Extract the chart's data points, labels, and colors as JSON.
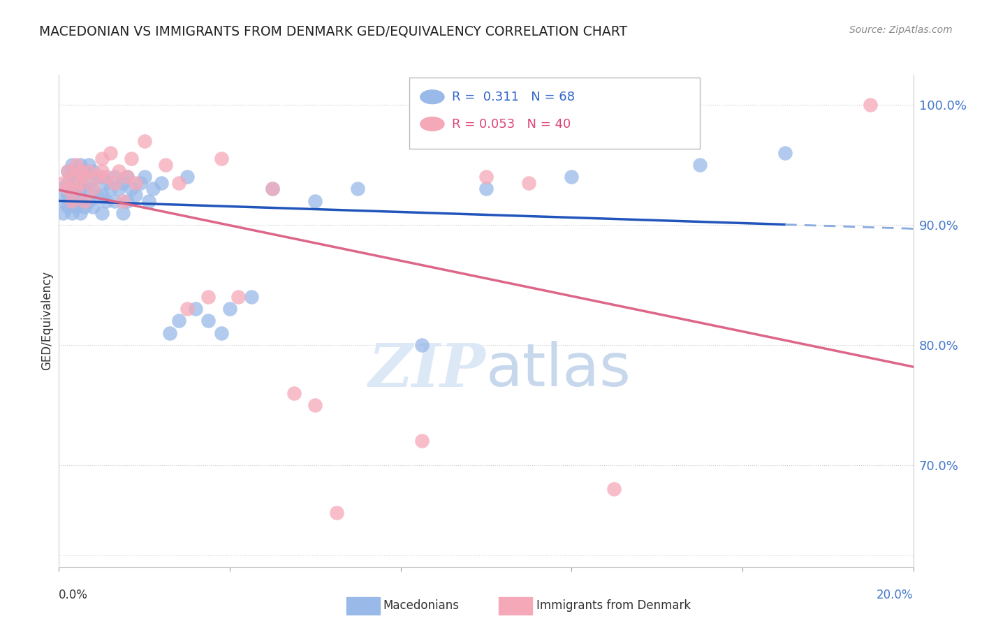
{
  "title": "MACEDONIAN VS IMMIGRANTS FROM DENMARK GED/EQUIVALENCY CORRELATION CHART",
  "source": "Source: ZipAtlas.com",
  "ylabel": "GED/Equivalency",
  "ytick_labels": [
    "70.0%",
    "80.0%",
    "90.0%",
    "100.0%"
  ],
  "ytick_values": [
    0.7,
    0.8,
    0.9,
    1.0
  ],
  "xlim": [
    0.0,
    0.2
  ],
  "ylim": [
    0.615,
    1.025
  ],
  "macedonian_color": "#99b9e8",
  "denmark_color": "#f5a8b8",
  "trendline_blue": "#2255bb",
  "trendline_pink": "#dd6688",
  "trendline_dashed_color": "#88aadd",
  "watermark_zip": "ZIP",
  "watermark_atlas": "atlas",
  "legend_r1_label": "R =  0.311",
  "legend_r1_n": "N = 68",
  "legend_r2_label": "R = 0.053",
  "legend_r2_n": "N = 40",
  "mac_x": [
    0.001,
    0.001,
    0.001,
    0.002,
    0.002,
    0.002,
    0.002,
    0.003,
    0.003,
    0.003,
    0.003,
    0.003,
    0.004,
    0.004,
    0.004,
    0.004,
    0.005,
    0.005,
    0.005,
    0.005,
    0.005,
    0.006,
    0.006,
    0.006,
    0.007,
    0.007,
    0.007,
    0.008,
    0.008,
    0.008,
    0.009,
    0.009,
    0.01,
    0.01,
    0.01,
    0.011,
    0.011,
    0.012,
    0.013,
    0.013,
    0.014,
    0.015,
    0.015,
    0.016,
    0.016,
    0.017,
    0.018,
    0.019,
    0.02,
    0.021,
    0.022,
    0.024,
    0.026,
    0.028,
    0.03,
    0.032,
    0.035,
    0.038,
    0.04,
    0.045,
    0.05,
    0.06,
    0.07,
    0.085,
    0.1,
    0.12,
    0.15,
    0.17
  ],
  "mac_y": [
    0.91,
    0.92,
    0.93,
    0.915,
    0.925,
    0.935,
    0.945,
    0.91,
    0.92,
    0.93,
    0.94,
    0.95,
    0.915,
    0.925,
    0.935,
    0.945,
    0.91,
    0.92,
    0.93,
    0.94,
    0.95,
    0.915,
    0.93,
    0.945,
    0.92,
    0.935,
    0.95,
    0.915,
    0.93,
    0.945,
    0.925,
    0.94,
    0.91,
    0.925,
    0.94,
    0.92,
    0.935,
    0.93,
    0.92,
    0.94,
    0.93,
    0.91,
    0.935,
    0.92,
    0.94,
    0.93,
    0.925,
    0.935,
    0.94,
    0.92,
    0.93,
    0.935,
    0.81,
    0.82,
    0.94,
    0.83,
    0.82,
    0.81,
    0.83,
    0.84,
    0.93,
    0.92,
    0.93,
    0.8,
    0.93,
    0.94,
    0.95,
    0.96
  ],
  "den_x": [
    0.001,
    0.002,
    0.002,
    0.003,
    0.003,
    0.004,
    0.004,
    0.005,
    0.005,
    0.006,
    0.006,
    0.007,
    0.008,
    0.009,
    0.01,
    0.01,
    0.011,
    0.012,
    0.013,
    0.014,
    0.015,
    0.016,
    0.017,
    0.018,
    0.02,
    0.025,
    0.028,
    0.03,
    0.035,
    0.038,
    0.042,
    0.05,
    0.055,
    0.06,
    0.065,
    0.085,
    0.1,
    0.11,
    0.13,
    0.19
  ],
  "den_y": [
    0.935,
    0.93,
    0.945,
    0.92,
    0.94,
    0.93,
    0.95,
    0.935,
    0.945,
    0.92,
    0.94,
    0.945,
    0.93,
    0.94,
    0.945,
    0.955,
    0.94,
    0.96,
    0.935,
    0.945,
    0.92,
    0.94,
    0.955,
    0.935,
    0.97,
    0.95,
    0.935,
    0.83,
    0.84,
    0.955,
    0.84,
    0.93,
    0.76,
    0.75,
    0.66,
    0.72,
    0.94,
    0.935,
    0.68,
    1.0
  ]
}
